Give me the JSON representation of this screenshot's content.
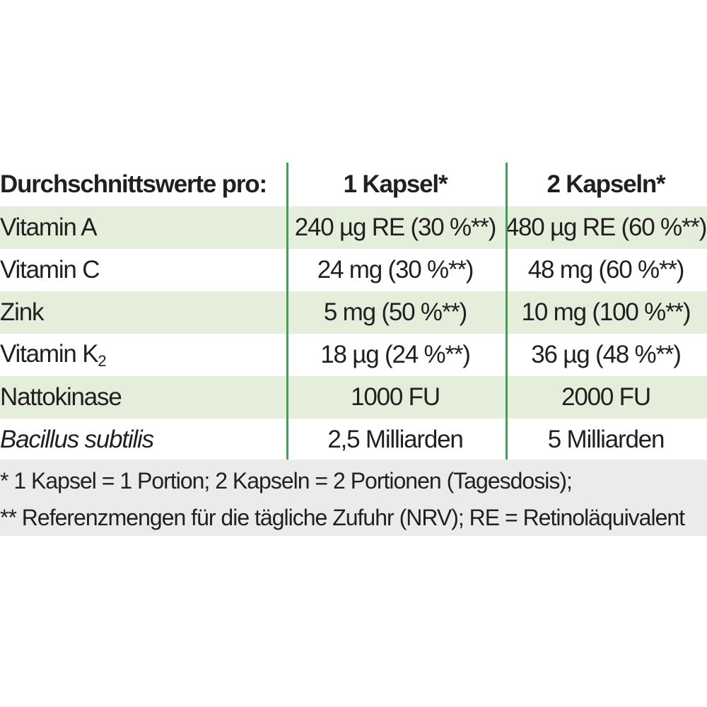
{
  "header": {
    "label": "Durchschnittswerte pro:",
    "col1": "1 Kapsel*",
    "col2": "2 Kapseln*"
  },
  "rows": [
    {
      "label": "Vitamin A",
      "v1": "240 µg RE (30 %**)",
      "v2": "480 µg RE (60 %**)"
    },
    {
      "label": "Vitamin C",
      "v1": "24 mg (30 %**)",
      "v2": "48 mg (60 %**)"
    },
    {
      "label": "Zink",
      "v1": "5 mg (50 %**)",
      "v2": "10 mg (100 %**)"
    },
    {
      "label": "Vitamin K",
      "label_sub": "2",
      "v1": "18 µg (24 %**)",
      "v2": "36 µg (48 %**)"
    },
    {
      "label": "Nattokinase",
      "v1": "1000 FU",
      "v2": "2000 FU"
    },
    {
      "label": "Bacillus subtilis",
      "v1": "2,5 Milliarden",
      "v2": "5 Milliarden"
    }
  ],
  "footnotes": [
    "* 1 Kapsel = 1 Portion; 2 Kapseln = 2 Portionen (Tagesdosis);",
    "** Referenzmengen für die tägliche Zufuhr (NRV); RE = Retinoläquivalent"
  ],
  "colors": {
    "divider": "#2fa84f",
    "row_shade": "#e4eedb",
    "footnote_bg": "#ebebeb",
    "text": "#231f20"
  }
}
